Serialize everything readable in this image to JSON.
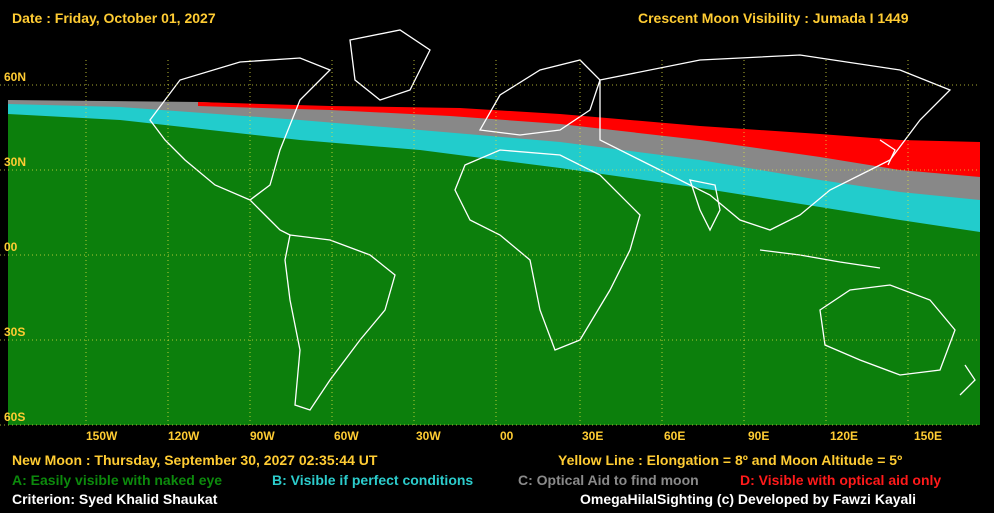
{
  "header": {
    "date": "Date : Friday, October 01, 2027",
    "title": "Crescent Moon Visibility : Jumada I  1449"
  },
  "map": {
    "lat_labels": [
      "60N",
      "30N",
      "00",
      "30S",
      "60S"
    ],
    "lon_labels": [
      "150W",
      "120W",
      "90W",
      "60W",
      "30W",
      "00",
      "30E",
      "60E",
      "90E",
      "120E",
      "150E"
    ]
  },
  "footer": {
    "new_moon": "New Moon : Thursday, September 30, 2027  02:35:44  UT",
    "yellow_line": "Yellow Line : Elongation = 8º  and Moon Altitude = 5º",
    "criterion": "Criterion: Syed Khalid Shaukat",
    "credit": "OmegaHilalSighting  (c)  Developed by Fawzi Kayali"
  },
  "legend": [
    {
      "label": "A: Easily visible with naked eye",
      "color": "#0c8a0c"
    },
    {
      "label": "B: Visible if perfect conditions",
      "color": "#2ccccc"
    },
    {
      "label": "C: Optical Aid to find moon",
      "color": "#8a8a8a"
    },
    {
      "label": "D: Visible with optical aid only",
      "color": "#ff1a1a"
    }
  ],
  "colors": {
    "zone_a": "#0c7f0c",
    "zone_b": "#22cccc",
    "zone_c": "#888888",
    "zone_d": "#ff0000",
    "grid": "#e0e040",
    "label": "#ffcc33"
  }
}
